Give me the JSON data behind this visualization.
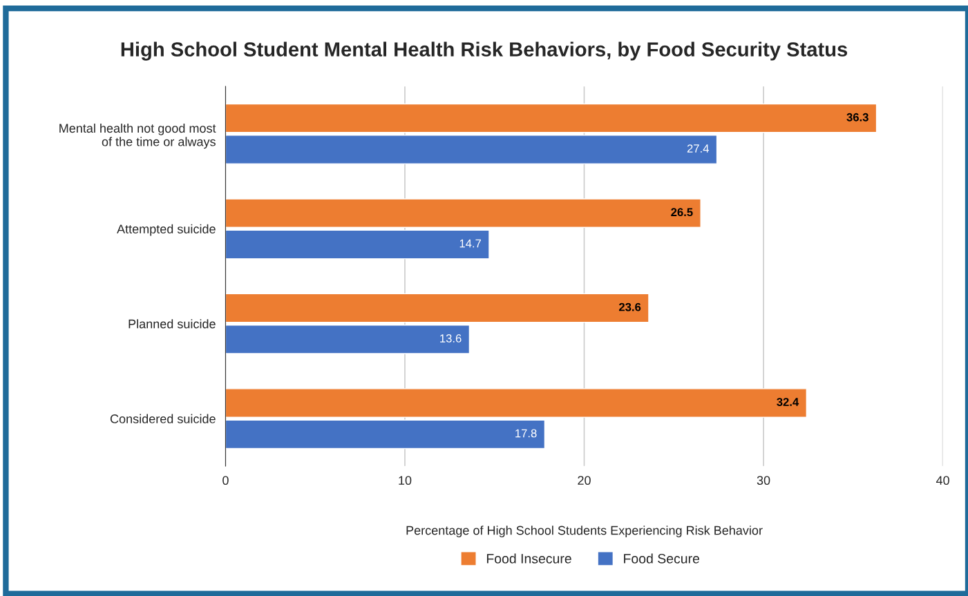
{
  "chart_data": {
    "type": "bar",
    "orientation": "horizontal",
    "title": "High School Student Mental Health Risk Behaviors, by Food Security Status",
    "xlabel": "Percentage of High School Students Experiencing Risk Behavior",
    "categories": [
      "Mental health not good most\nof the time or always",
      "Attempted suicide",
      "Planned suicide",
      "Considered suicide"
    ],
    "series": [
      {
        "name": "Food Insecure",
        "color": "#ed7d31",
        "values": [
          36.3,
          26.5,
          23.6,
          32.4
        ]
      },
      {
        "name": "Food Secure",
        "color": "#4472c4",
        "values": [
          27.4,
          14.7,
          13.6,
          17.8
        ]
      }
    ],
    "xlim": [
      0,
      40
    ],
    "xticks": [
      0,
      10,
      20,
      30,
      40
    ],
    "grid": "x",
    "legend": "bottom",
    "data_labels": true
  }
}
